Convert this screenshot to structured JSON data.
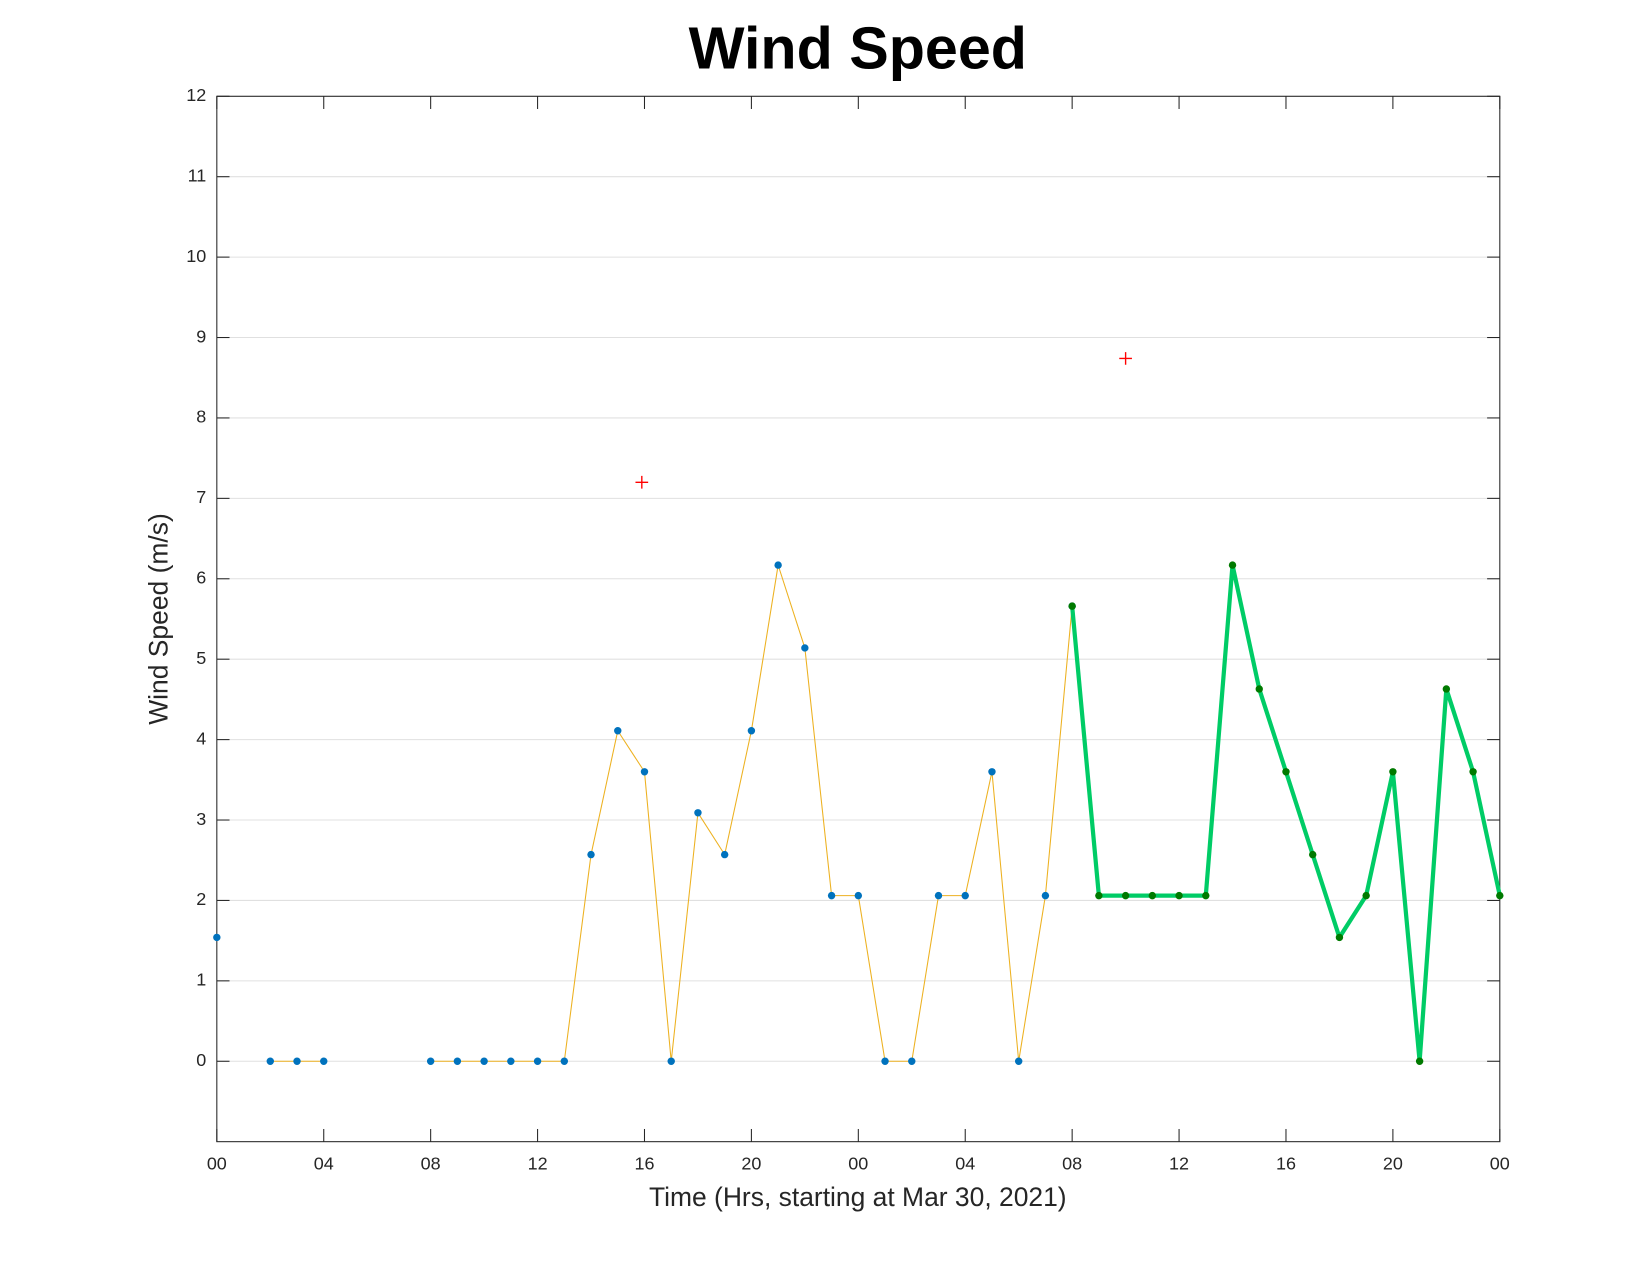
{
  "chart_data": {
    "type": "line",
    "title": "Wind Speed",
    "xlabel": "Time (Hrs, starting at Mar 30, 2021)",
    "ylabel": "Wind Speed (m/s)",
    "xlim": [
      0,
      48
    ],
    "ylim": [
      -1,
      12
    ],
    "xticks": [
      {
        "value": 0,
        "label": "00"
      },
      {
        "value": 4,
        "label": "04"
      },
      {
        "value": 8,
        "label": "08"
      },
      {
        "value": 12,
        "label": "12"
      },
      {
        "value": 16,
        "label": "16"
      },
      {
        "value": 20,
        "label": "20"
      },
      {
        "value": 24,
        "label": "00"
      },
      {
        "value": 28,
        "label": "04"
      },
      {
        "value": 32,
        "label": "08"
      },
      {
        "value": 36,
        "label": "12"
      },
      {
        "value": 40,
        "label": "16"
      },
      {
        "value": 44,
        "label": "20"
      },
      {
        "value": 48,
        "label": "00"
      }
    ],
    "yticks": [
      0,
      1,
      2,
      3,
      4,
      5,
      6,
      7,
      8,
      9,
      10,
      11,
      12
    ],
    "grid": "y",
    "series": [
      {
        "color": "#edb120",
        "marker_color": "#0072bd",
        "line_width": 1,
        "marker": "dot",
        "x": [
          0,
          1,
          2,
          3,
          4,
          5,
          6,
          7,
          8,
          9,
          10,
          11,
          12,
          13,
          14,
          15,
          16,
          17,
          18,
          19,
          20,
          21,
          22,
          23,
          24,
          25,
          26,
          27,
          28,
          29,
          30,
          31,
          32
        ],
        "values": [
          1.54,
          null,
          0,
          0,
          0,
          null,
          null,
          null,
          0,
          0,
          0,
          0,
          0,
          0,
          2.57,
          4.11,
          3.6,
          0,
          3.09,
          2.57,
          4.11,
          6.17,
          5.14,
          2.06,
          2.06,
          0,
          0,
          2.06,
          2.06,
          3.6,
          0,
          2.06,
          5.66
        ]
      },
      {
        "color": "#00cc66",
        "marker_color": "#007a00",
        "line_width": 4,
        "marker": "dot",
        "x": [
          32,
          33,
          34,
          35,
          36,
          37,
          38,
          39,
          40,
          41,
          42,
          43,
          44,
          45,
          46,
          47,
          48
        ],
        "values": [
          5.66,
          2.06,
          2.06,
          2.06,
          2.06,
          2.06,
          6.17,
          4.63,
          3.6,
          2.57,
          1.54,
          2.06,
          3.6,
          0,
          4.63,
          3.6,
          2.06
        ]
      },
      {
        "color": "#ff0000",
        "line_width": 0,
        "marker": "plus",
        "x": [
          15.9,
          34
        ],
        "values": [
          7.2,
          8.74
        ]
      }
    ]
  }
}
